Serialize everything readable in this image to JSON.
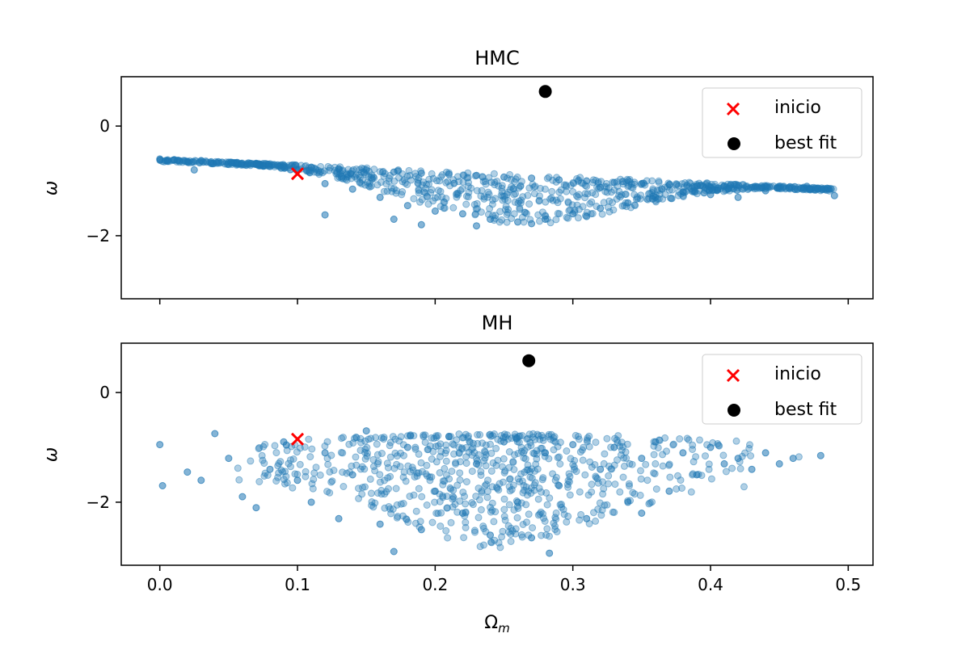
{
  "chart_data": [
    {
      "type": "scatter",
      "title": "HMC",
      "xlabel": "",
      "ylabel": "ω",
      "xlim": [
        -0.028,
        0.518
      ],
      "ylim": [
        -3.15,
        0.9
      ],
      "xticks": [
        0.0,
        0.1,
        0.2,
        0.3,
        0.4,
        0.5
      ],
      "yticks": [
        0,
        -2
      ],
      "ytick_labels": [
        "0",
        "−2"
      ],
      "legend_position": "upper right",
      "series": [
        {
          "name": "",
          "color": "#1f77b4",
          "description_of_cloud": "dense band from about (0.0, -0.6) sloping down to (0.49, -1.2), thickening below 0.2–0.35 down to about -1.8",
          "points": [
            [
              0.0,
              -0.6
            ],
            [
              0.01,
              -0.62
            ],
            [
              0.03,
              -0.63
            ],
            [
              0.05,
              -0.66
            ],
            [
              0.07,
              -0.68
            ],
            [
              0.09,
              -0.72
            ],
            [
              0.11,
              -0.75
            ],
            [
              0.13,
              -0.78
            ],
            [
              0.15,
              -0.8
            ],
            [
              0.17,
              -0.84
            ],
            [
              0.19,
              -0.86
            ],
            [
              0.21,
              -0.88
            ],
            [
              0.23,
              -0.9
            ],
            [
              0.25,
              -0.93
            ],
            [
              0.27,
              -0.95
            ],
            [
              0.29,
              -0.98
            ],
            [
              0.31,
              -1.0
            ],
            [
              0.33,
              -1.03
            ],
            [
              0.35,
              -1.05
            ],
            [
              0.37,
              -1.07
            ],
            [
              0.39,
              -1.09
            ],
            [
              0.41,
              -1.1
            ],
            [
              0.43,
              -1.12
            ],
            [
              0.45,
              -1.1
            ],
            [
              0.47,
              -1.1
            ],
            [
              0.49,
              -1.27
            ],
            [
              0.12,
              -1.05
            ],
            [
              0.14,
              -1.15
            ],
            [
              0.16,
              -1.3
            ],
            [
              0.18,
              -1.45
            ],
            [
              0.2,
              -1.55
            ],
            [
              0.22,
              -1.6
            ],
            [
              0.24,
              -1.7
            ],
            [
              0.26,
              -1.75
            ],
            [
              0.28,
              -1.7
            ],
            [
              0.3,
              -1.6
            ],
            [
              0.32,
              -1.5
            ],
            [
              0.34,
              -1.4
            ],
            [
              0.36,
              -1.3
            ],
            [
              0.38,
              -1.2
            ],
            [
              0.4,
              -1.25
            ],
            [
              0.19,
              -1.8
            ],
            [
              0.23,
              -1.82
            ],
            [
              0.27,
              -1.78
            ],
            [
              0.17,
              -1.7
            ],
            [
              0.31,
              -1.65
            ],
            [
              0.025,
              -0.8
            ],
            [
              0.12,
              -1.62
            ],
            [
              0.44,
              -1.18
            ],
            [
              0.42,
              -1.3
            ]
          ]
        },
        {
          "name": "inicio",
          "color": "#ff0000",
          "marker": "x",
          "points": [
            [
              0.1,
              -0.87
            ]
          ]
        },
        {
          "name": "best fit",
          "color": "#000000",
          "marker": "o",
          "points": [
            [
              0.28,
              0.63
            ]
          ]
        }
      ]
    },
    {
      "type": "scatter",
      "title": "MH",
      "xlabel": "Ωm",
      "ylabel": "ω",
      "xlim": [
        -0.028,
        0.518
      ],
      "ylim": [
        -3.15,
        0.9
      ],
      "xticks": [
        0.0,
        0.1,
        0.2,
        0.3,
        0.4,
        0.5
      ],
      "xtick_labels": [
        "0.0",
        "0.1",
        "0.2",
        "0.3",
        "0.4",
        "0.5"
      ],
      "yticks": [
        0,
        -2
      ],
      "ytick_labels": [
        "0",
        "−2"
      ],
      "legend_position": "upper right",
      "series": [
        {
          "name": "",
          "color": "#1f77b4",
          "description_of_cloud": "broad cloud between Ωm 0.0 and 0.48, ω from about -0.7 down to -2.9, densest near 0.2–0.35",
          "points": [
            [
              0.0,
              -0.95
            ],
            [
              0.002,
              -1.7
            ],
            [
              0.02,
              -1.45
            ],
            [
              0.03,
              -1.6
            ],
            [
              0.04,
              -0.75
            ],
            [
              0.05,
              -1.2
            ],
            [
              0.06,
              -1.9
            ],
            [
              0.07,
              -2.1
            ],
            [
              0.08,
              -1.4
            ],
            [
              0.09,
              -0.9
            ],
            [
              0.1,
              -1.6
            ],
            [
              0.11,
              -2.0
            ],
            [
              0.12,
              -1.1
            ],
            [
              0.13,
              -2.3
            ],
            [
              0.14,
              -1.5
            ],
            [
              0.15,
              -0.7
            ],
            [
              0.16,
              -2.4
            ],
            [
              0.17,
              -2.9
            ],
            [
              0.18,
              -1.0
            ],
            [
              0.19,
              -2.5
            ],
            [
              0.2,
              -1.8
            ],
            [
              0.21,
              -0.8
            ],
            [
              0.22,
              -2.2
            ],
            [
              0.23,
              -1.3
            ],
            [
              0.24,
              -2.6
            ],
            [
              0.25,
              -0.9
            ],
            [
              0.26,
              -2.0
            ],
            [
              0.27,
              -2.65
            ],
            [
              0.28,
              -1.1
            ],
            [
              0.283,
              -2.93
            ],
            [
              0.29,
              -1.7
            ],
            [
              0.3,
              -0.95
            ],
            [
              0.31,
              -2.3
            ],
            [
              0.32,
              -1.4
            ],
            [
              0.33,
              -1.0
            ],
            [
              0.34,
              -2.0
            ],
            [
              0.35,
              -1.2
            ],
            [
              0.36,
              -0.9
            ],
            [
              0.37,
              -1.8
            ],
            [
              0.38,
              -1.1
            ],
            [
              0.39,
              -1.5
            ],
            [
              0.4,
              -1.0
            ],
            [
              0.41,
              -1.3
            ],
            [
              0.42,
              -1.2
            ],
            [
              0.43,
              -1.4
            ],
            [
              0.44,
              -1.1
            ],
            [
              0.45,
              -1.3
            ],
            [
              0.46,
              -1.2
            ],
            [
              0.48,
              -1.15
            ],
            [
              0.35,
              -2.2
            ]
          ]
        },
        {
          "name": "inicio",
          "color": "#ff0000",
          "marker": "x",
          "points": [
            [
              0.1,
              -0.85
            ]
          ]
        },
        {
          "name": "best fit",
          "color": "#000000",
          "marker": "o",
          "points": [
            [
              0.268,
              0.58
            ]
          ]
        }
      ]
    }
  ]
}
